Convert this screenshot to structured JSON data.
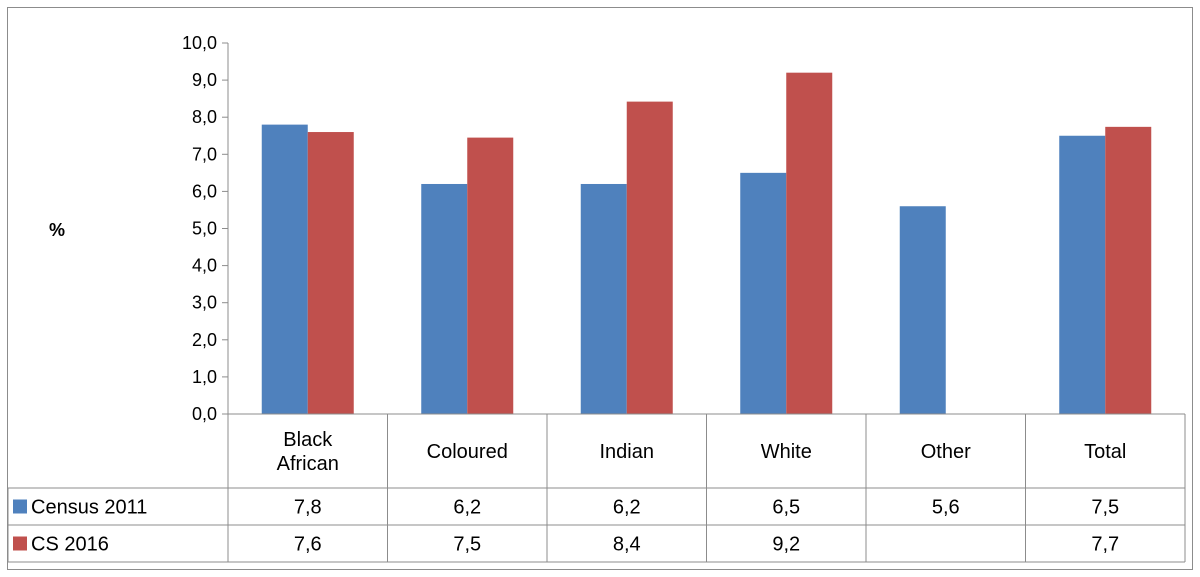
{
  "chart_data": {
    "type": "bar",
    "title": "",
    "xlabel": "",
    "ylabel": "%",
    "categories": [
      "Black African",
      "Coloured",
      "Indian",
      "White",
      "Other",
      "Total"
    ],
    "category_lines": [
      [
        "Black",
        "African"
      ],
      [
        "Coloured"
      ],
      [
        "Indian"
      ],
      [
        "White"
      ],
      [
        "Other"
      ],
      [
        "Total"
      ]
    ],
    "series": [
      {
        "name": "Census 2011",
        "color": "#4f81bd",
        "values": [
          7.8,
          6.2,
          6.2,
          6.5,
          5.6,
          7.5
        ],
        "labels": [
          "7,8",
          "6,2",
          "6,2",
          "6,5",
          "5,6",
          "7,5"
        ]
      },
      {
        "name": "CS 2016",
        "color": "#c0504d",
        "values": [
          7.6,
          7.45,
          8.42,
          9.2,
          null,
          7.74
        ],
        "labels": [
          "7,6",
          "7,5",
          "8,4",
          "9,2",
          "",
          "7,7"
        ]
      }
    ],
    "yticks": [
      "0,0",
      "1,0",
      "2,0",
      "3,0",
      "4,0",
      "5,0",
      "6,0",
      "7,0",
      "8,0",
      "9,0",
      "10,0"
    ],
    "ylim": [
      0,
      10
    ],
    "grid": false,
    "legend": "data-table"
  }
}
